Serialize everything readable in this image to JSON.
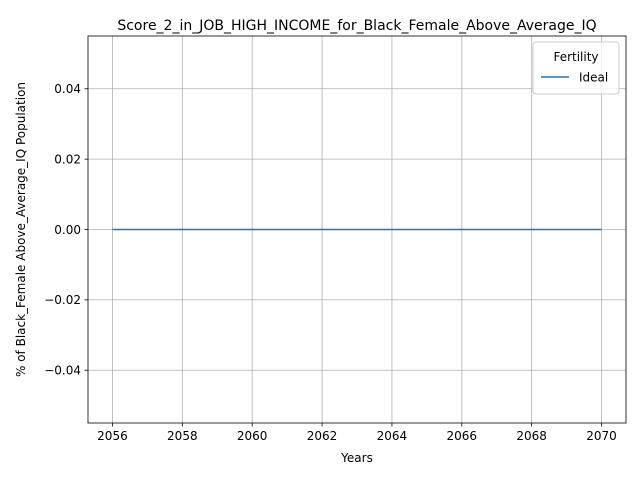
{
  "chart_data": {
    "type": "line",
    "title": "Score_2_in_JOB_HIGH_INCOME_for_Black_Female_Above_Average_IQ",
    "xlabel": "Years",
    "ylabel": "% of Black_Female Above_Average_IQ Population",
    "x": [
      2056,
      2057,
      2058,
      2059,
      2060,
      2061,
      2062,
      2063,
      2064,
      2065,
      2066,
      2067,
      2068,
      2069,
      2070
    ],
    "series": [
      {
        "name": "Ideal",
        "color": "#1f77b4",
        "values": [
          0,
          0,
          0,
          0,
          0,
          0,
          0,
          0,
          0,
          0,
          0,
          0,
          0,
          0,
          0
        ]
      }
    ],
    "xlim": [
      2055.3,
      2070.7
    ],
    "ylim": [
      -0.055,
      0.055
    ],
    "xticks": [
      2056,
      2058,
      2060,
      2062,
      2064,
      2066,
      2068,
      2070
    ],
    "xtick_labels": [
      "2056",
      "2058",
      "2060",
      "2062",
      "2064",
      "2066",
      "2068",
      "2070"
    ],
    "yticks": [
      -0.04,
      -0.02,
      0.0,
      0.02,
      0.04
    ],
    "ytick_labels": [
      "−0.04",
      "−0.02",
      "0.00",
      "0.02",
      "0.04"
    ],
    "grid": true,
    "legend": {
      "title": "Fertility",
      "placement": "top-right",
      "entries": [
        "Ideal"
      ]
    }
  }
}
